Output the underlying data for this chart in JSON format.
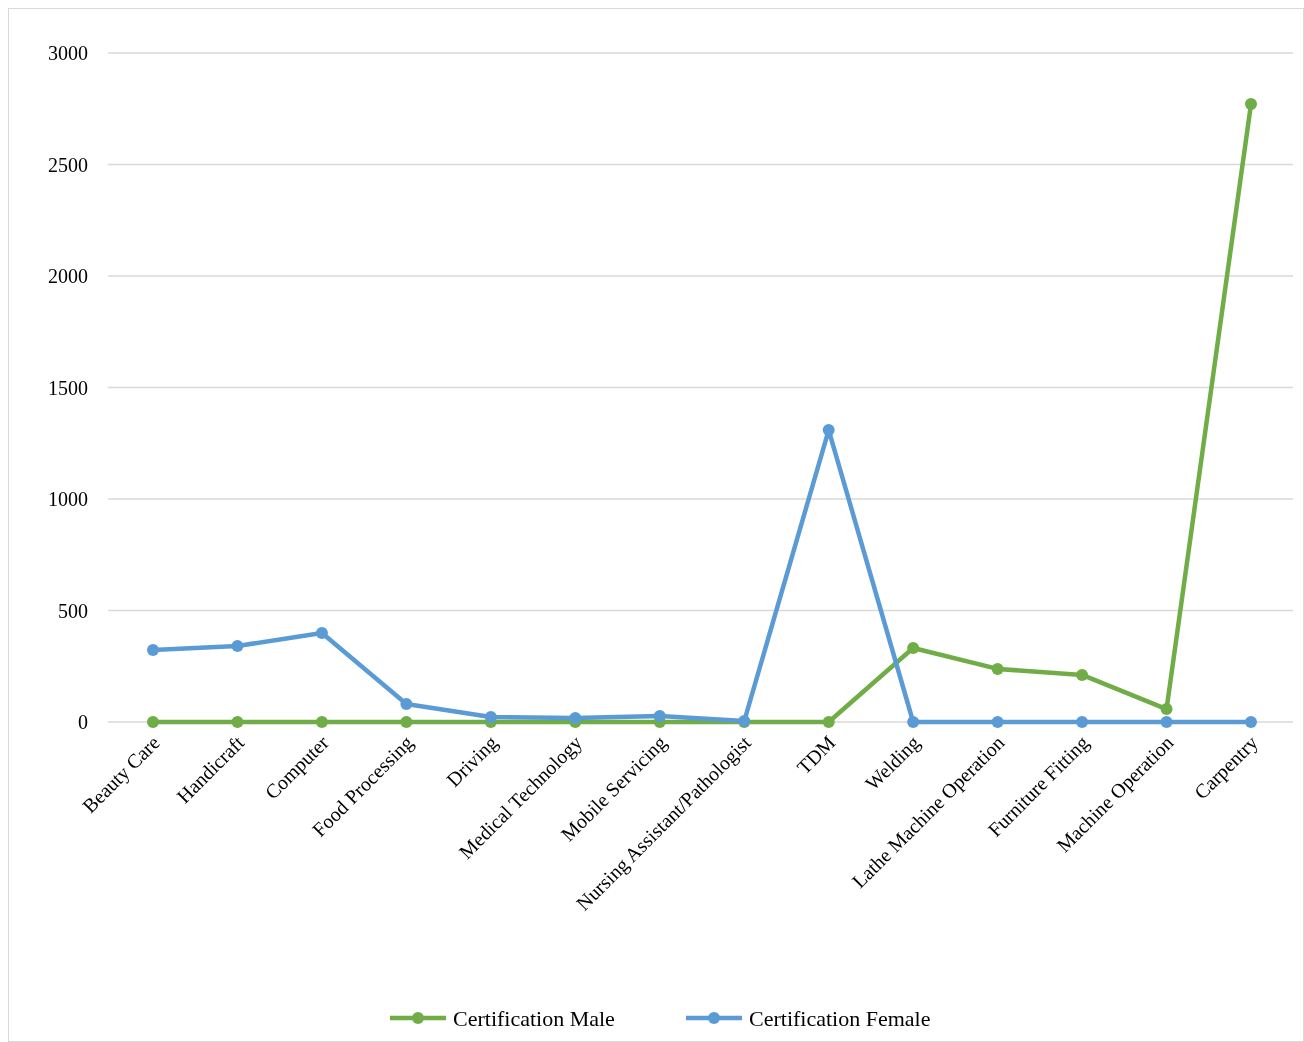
{
  "chart_data": {
    "type": "line",
    "categories": [
      "Beauty Care",
      "Handicraft",
      "Computer",
      "Food Processing",
      "Driving",
      "Medical Technology",
      "Mobile Servicing",
      "Nursing Assistant/Pathologist",
      "TDM",
      "Welding",
      "Lathe Machine Operation",
      "Furniture Fitting",
      "Machine Operation",
      "Carpentry"
    ],
    "series": [
      {
        "name": "Certification Male",
        "color": "#70ad47",
        "values": [
          0,
          0,
          0,
          0,
          0,
          0,
          0,
          0,
          0,
          332,
          238,
          211,
          58,
          2771
        ]
      },
      {
        "name": "Certification Female",
        "color": "#5b9bd5",
        "values": [
          323,
          341,
          399,
          81,
          22,
          18,
          27,
          4,
          1309,
          0,
          0,
          0,
          0,
          0
        ]
      }
    ],
    "ylim": [
      0,
      3000
    ],
    "yticks": [
      0,
      500,
      1000,
      1500,
      2000,
      2500,
      3000
    ],
    "grid": "y",
    "legend": "bottom",
    "marker": "circle",
    "line_style": "solid"
  }
}
